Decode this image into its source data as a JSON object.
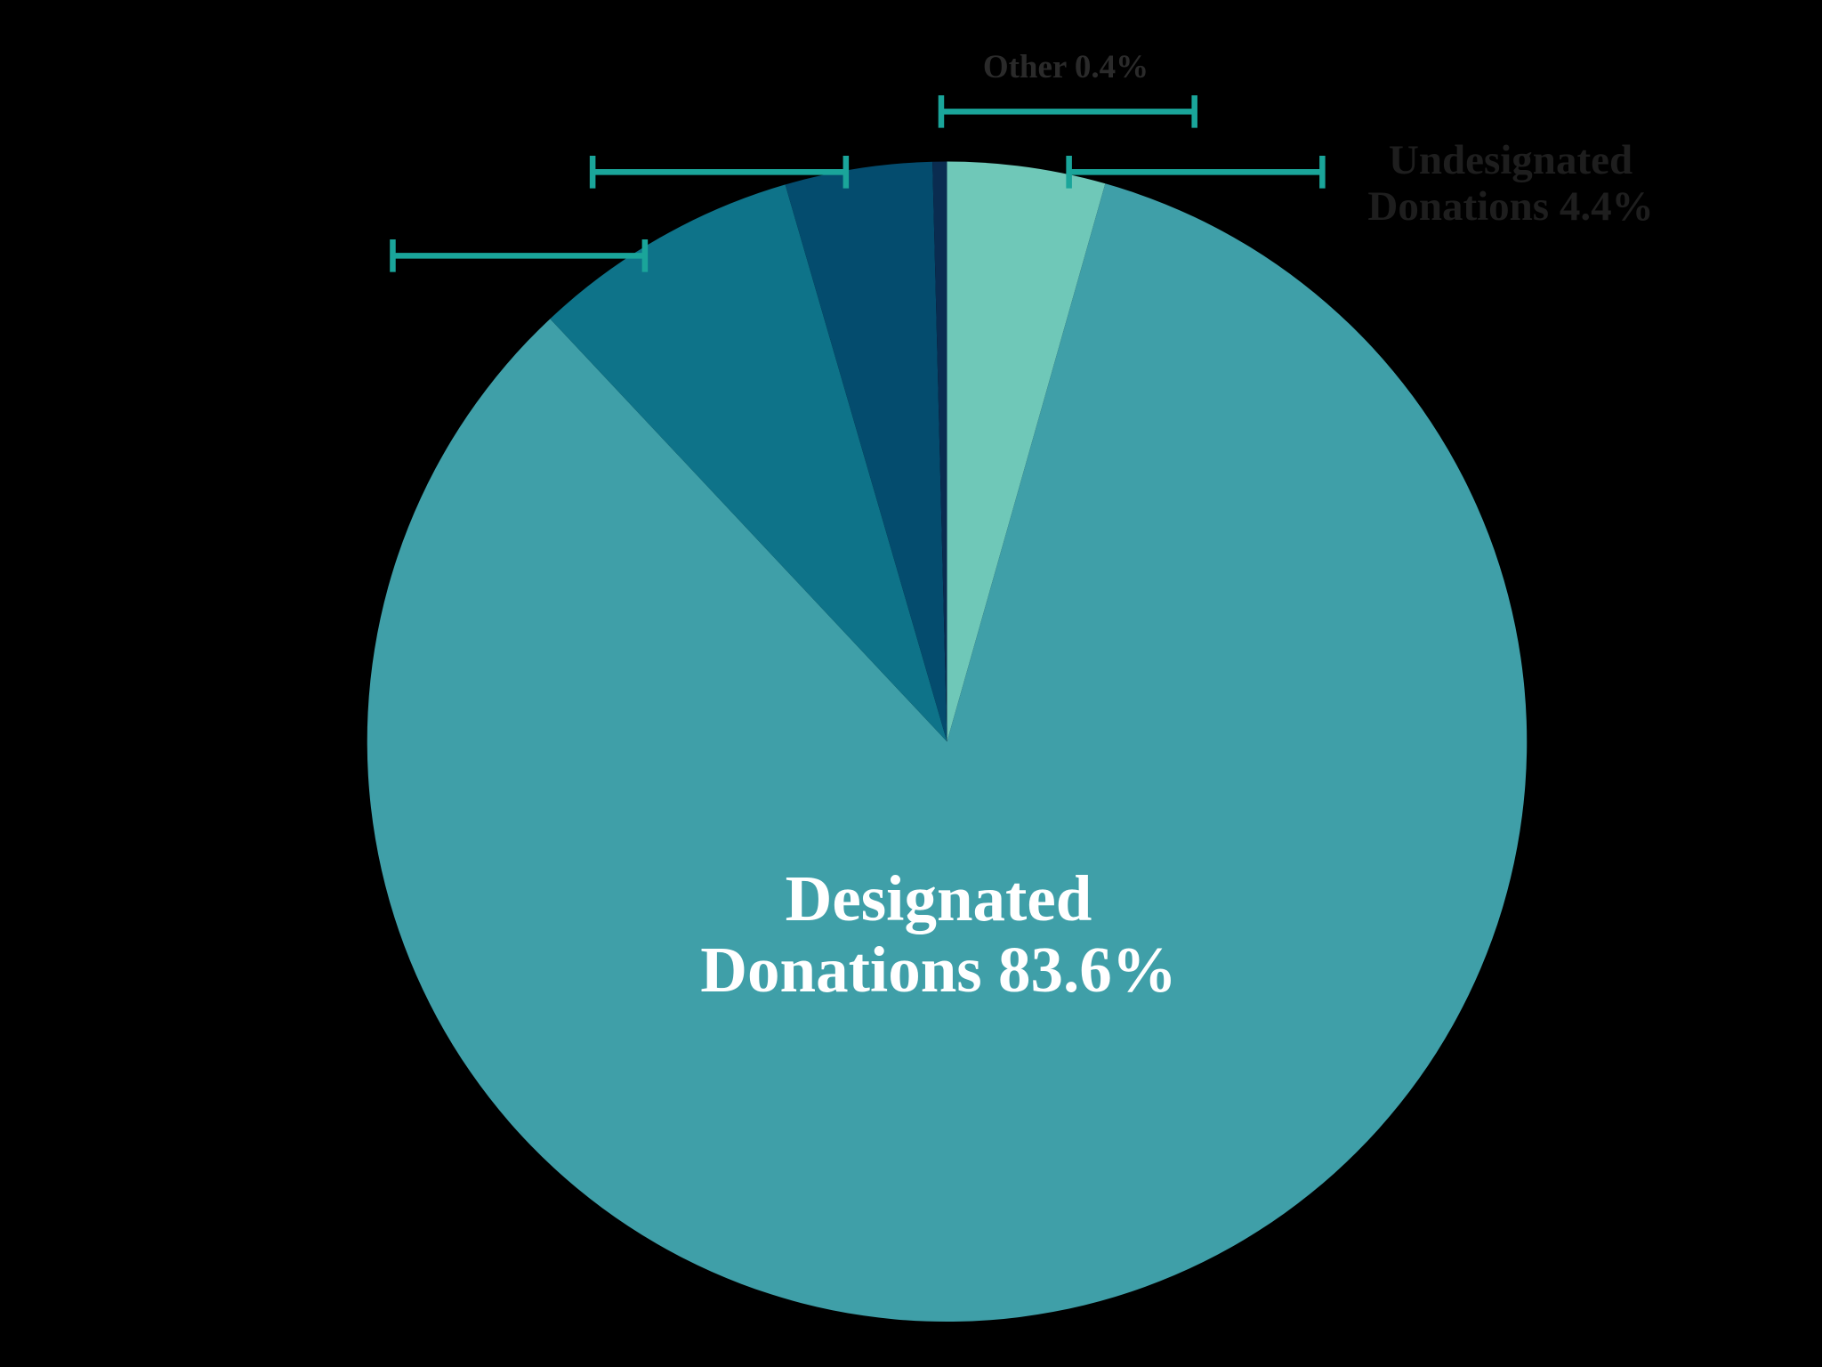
{
  "chart_data": {
    "type": "pie",
    "categories": [
      "Undesignated Donations",
      "Designated Donations",
      null,
      null,
      "Other"
    ],
    "values": [
      4.4,
      83.6,
      7.5,
      4.1,
      0.4
    ],
    "value_labels": [
      "4.4%",
      "83.6%",
      null,
      null,
      "0.4%"
    ],
    "colors": [
      "#6fc8b8",
      "#3f9fa8",
      "#0e7389",
      "#044c6e",
      "#0a2c50"
    ]
  }
}
